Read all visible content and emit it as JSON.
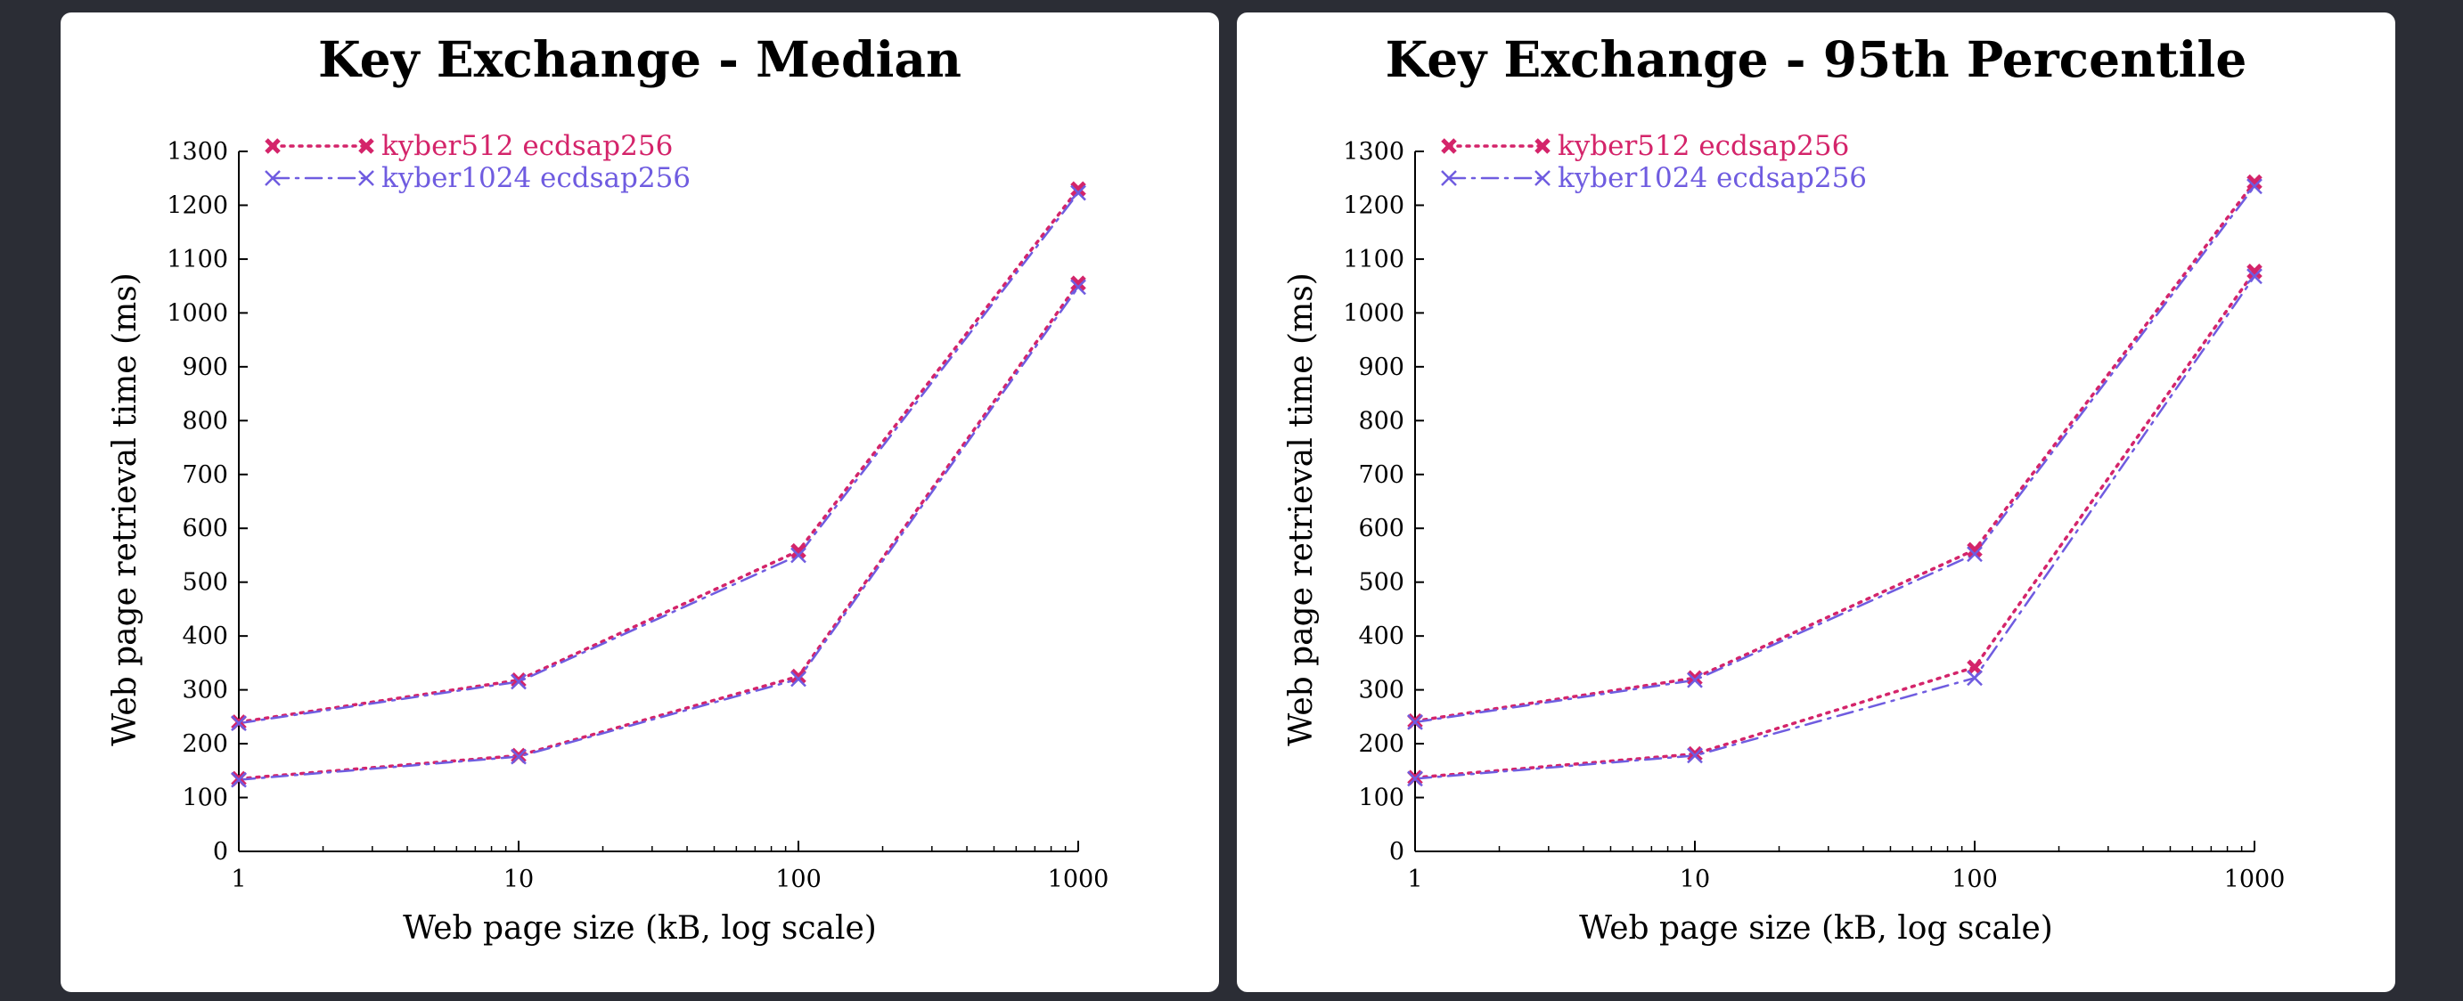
{
  "chart_data": [
    {
      "type": "line",
      "title": "Key Exchange - Median",
      "xlabel": "Web page size (kB, log scale)",
      "ylabel": "Web page retrieval time (ms)",
      "xscale": "log",
      "xlim": [
        1,
        1000
      ],
      "ylim": [
        0,
        1300
      ],
      "xticks": [
        1,
        10,
        100,
        1000
      ],
      "yticks": [
        0,
        100,
        200,
        300,
        400,
        500,
        600,
        700,
        800,
        900,
        1000,
        1100,
        1200,
        1300
      ],
      "grid": false,
      "legend_position": "top-left",
      "x": [
        1,
        10,
        100,
        1000
      ],
      "series": [
        {
          "name": "kyber512 ecdsap256",
          "color": "#d4246a",
          "style": "dotted",
          "marker": "x-bold",
          "values": [
            240,
            318,
            558,
            1230
          ]
        },
        {
          "name": "kyber512 ecdsap256",
          "color": "#d4246a",
          "style": "dotted",
          "marker": "x-bold",
          "values": [
            135,
            178,
            325,
            1055
          ]
        },
        {
          "name": "kyber1024 ecdsap256",
          "color": "#6f5ce0",
          "style": "dashdot",
          "marker": "x-thin",
          "values": [
            238,
            315,
            550,
            1223
          ]
        },
        {
          "name": "kyber1024 ecdsap256",
          "color": "#6f5ce0",
          "style": "dashdot",
          "marker": "x-thin",
          "values": [
            133,
            176,
            320,
            1048
          ]
        }
      ]
    },
    {
      "type": "line",
      "title": "Key Exchange - 95th Percentile",
      "xlabel": "Web page size (kB, log scale)",
      "ylabel": "Web page retrieval time (ms)",
      "xscale": "log",
      "xlim": [
        1,
        1000
      ],
      "ylim": [
        0,
        1300
      ],
      "xticks": [
        1,
        10,
        100,
        1000
      ],
      "yticks": [
        0,
        100,
        200,
        300,
        400,
        500,
        600,
        700,
        800,
        900,
        1000,
        1100,
        1200,
        1300
      ],
      "grid": false,
      "legend_position": "top-left",
      "x": [
        1,
        10,
        100,
        1000
      ],
      "series": [
        {
          "name": "kyber512 ecdsap256",
          "color": "#d4246a",
          "style": "dotted",
          "marker": "x-bold",
          "values": [
            242,
            322,
            560,
            1243
          ]
        },
        {
          "name": "kyber512 ecdsap256",
          "color": "#d4246a",
          "style": "dotted",
          "marker": "x-bold",
          "values": [
            137,
            181,
            342,
            1077
          ]
        },
        {
          "name": "kyber1024 ecdsap256",
          "color": "#6f5ce0",
          "style": "dashdot",
          "marker": "x-thin",
          "values": [
            240,
            318,
            552,
            1235
          ]
        },
        {
          "name": "kyber1024 ecdsap256",
          "color": "#6f5ce0",
          "style": "dashdot",
          "marker": "x-thin",
          "values": [
            135,
            178,
            322,
            1068
          ]
        }
      ]
    }
  ]
}
